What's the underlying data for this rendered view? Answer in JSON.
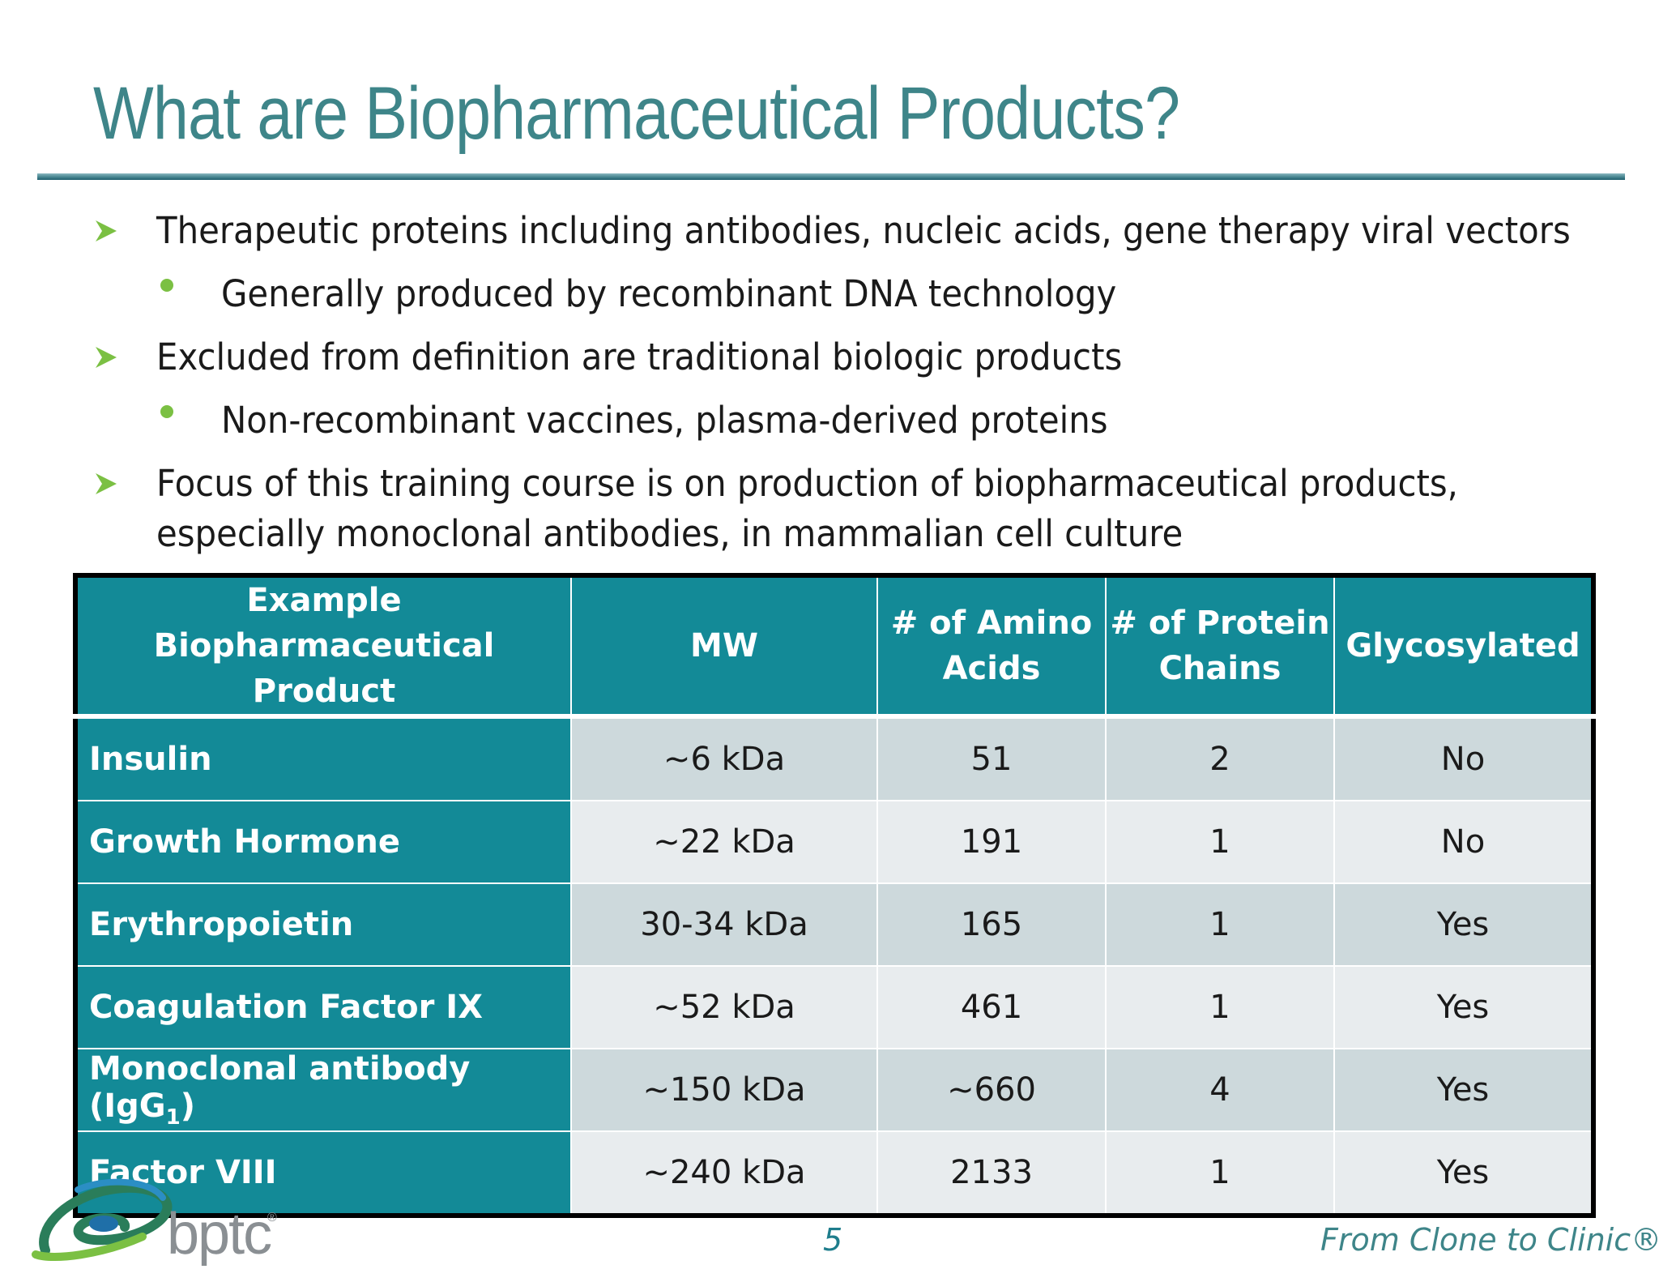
{
  "slide": {
    "title": "What are Biopharmaceutical Products?",
    "page_number": "5",
    "tagline": "From Clone to Clinic®",
    "logo_text": "bptc",
    "logo_reg": "®"
  },
  "bullets": [
    {
      "level": 1,
      "text": "Therapeutic proteins including antibodies,  nucleic acids, gene therapy viral vectors"
    },
    {
      "level": 2,
      "text": "Generally produced by recombinant DNA technology"
    },
    {
      "level": 1,
      "text": "Excluded from definition are traditional biologic products"
    },
    {
      "level": 2,
      "text": "Non-recombinant vaccines, plasma-derived proteins"
    },
    {
      "level": 1,
      "text": "Focus of this training course is on production of biopharmaceutical products,",
      "cont": "especially monoclonal antibodies, in mammalian cell culture"
    }
  ],
  "table": {
    "headers": [
      {
        "l1": "Example",
        "l2": "Biopharmaceutical Product"
      },
      {
        "l1": "MW",
        "l2": ""
      },
      {
        "l1": "# of Amino",
        "l2": "Acids"
      },
      {
        "l1": "# of Protein",
        "l2": "Chains"
      },
      {
        "l1": "Glycosylated",
        "l2": ""
      }
    ],
    "rows": [
      {
        "name": "Insulin",
        "mw": "~6 kDa",
        "aa": "51",
        "chains": "2",
        "glyco": "No"
      },
      {
        "name": "Growth Hormone",
        "mw": "~22 kDa",
        "aa": "191",
        "chains": "1",
        "glyco": "No"
      },
      {
        "name": "Erythropoietin",
        "mw": "30-34 kDa",
        "aa": "165",
        "chains": "1",
        "glyco": "Yes"
      },
      {
        "name": "Coagulation Factor IX",
        "mw": "~52 kDa",
        "aa": "461",
        "chains": "1",
        "glyco": "Yes"
      },
      {
        "name": "Monoclonal antibody (IgG",
        "name_sub": "1",
        "name_end": ")",
        "mw": "~150 kDa",
        "aa": "~660",
        "chains": "4",
        "glyco": "Yes"
      },
      {
        "name": "Factor VIII",
        "mw": "~240 kDa",
        "aa": "2133",
        "chains": "1",
        "glyco": "Yes"
      }
    ]
  },
  "colors": {
    "title": "#3e8589",
    "table_teal": "#138a97",
    "bullet_green": "#7bc043"
  }
}
